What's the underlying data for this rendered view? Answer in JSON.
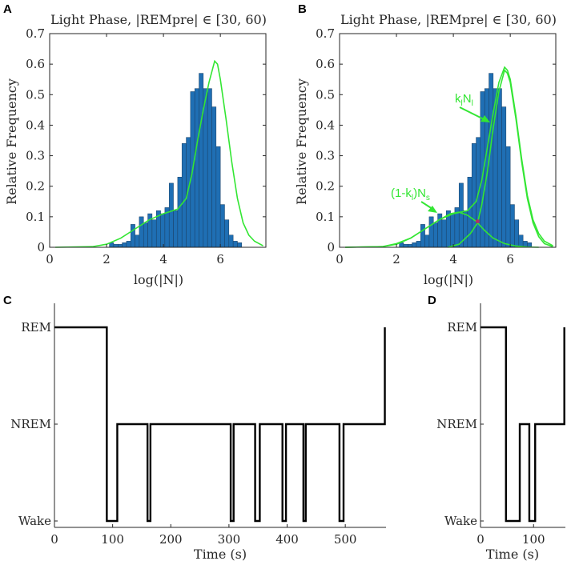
{
  "colors": {
    "bar": "#1f6fb4",
    "bar_edge": "#1a3f63",
    "fit": "#33e633",
    "marker": "#b0306a",
    "axis": "#262626",
    "trace": "#000000"
  },
  "chart_data": [
    {
      "panel": "A",
      "type": "bar",
      "title": "Light Phase, |REMpre| ∈ [30, 60)",
      "xlabel": "log(|N|)",
      "ylabel": "Relative Frequency",
      "xlim": [
        0,
        7.6
      ],
      "ylim": [
        0,
        0.7
      ],
      "xticks": [
        0,
        2,
        4,
        6
      ],
      "yticks": [
        0,
        0.1,
        0.2,
        0.3,
        0.4,
        0.5,
        0.6,
        0.7
      ],
      "bin_start": 2.1,
      "bin_width": 0.15,
      "values": [
        0.015,
        0.01,
        0.01,
        0.015,
        0.02,
        0.075,
        0.04,
        0.1,
        0.08,
        0.11,
        0.09,
        0.12,
        0.11,
        0.13,
        0.21,
        0.12,
        0.23,
        0.34,
        0.36,
        0.51,
        0.52,
        0.57,
        0.52,
        0.52,
        0.46,
        0.33,
        0.14,
        0.09,
        0.04,
        0.02,
        0.015
      ],
      "fit_curve": [
        [
          0.2,
          0
        ],
        [
          1.5,
          0.002
        ],
        [
          2.0,
          0.01
        ],
        [
          2.5,
          0.03
        ],
        [
          3.0,
          0.06
        ],
        [
          3.5,
          0.09
        ],
        [
          4.0,
          0.11
        ],
        [
          4.5,
          0.125
        ],
        [
          4.8,
          0.16
        ],
        [
          5.0,
          0.24
        ],
        [
          5.2,
          0.35
        ],
        [
          5.4,
          0.45
        ],
        [
          5.6,
          0.54
        ],
        [
          5.8,
          0.61
        ],
        [
          5.9,
          0.6
        ],
        [
          6.0,
          0.55
        ],
        [
          6.2,
          0.42
        ],
        [
          6.4,
          0.28
        ],
        [
          6.6,
          0.16
        ],
        [
          6.8,
          0.08
        ],
        [
          7.0,
          0.04
        ],
        [
          7.2,
          0.02
        ],
        [
          7.5,
          0.005
        ]
      ]
    },
    {
      "panel": "B",
      "type": "bar",
      "title": "Light Phase, |REMpre| ∈ [30, 60)",
      "xlabel": "log(|N|)",
      "ylabel": "Relative Frequency",
      "xlim": [
        0,
        7.6
      ],
      "ylim": [
        0,
        0.7
      ],
      "xticks": [
        0,
        2,
        4,
        6
      ],
      "yticks": [
        0,
        0.1,
        0.2,
        0.3,
        0.4,
        0.5,
        0.6,
        0.7
      ],
      "bin_start": 2.1,
      "bin_width": 0.15,
      "values": [
        0.015,
        0.01,
        0.01,
        0.015,
        0.02,
        0.075,
        0.04,
        0.1,
        0.08,
        0.11,
        0.09,
        0.12,
        0.11,
        0.13,
        0.21,
        0.12,
        0.23,
        0.34,
        0.36,
        0.51,
        0.52,
        0.57,
        0.52,
        0.52,
        0.46,
        0.33,
        0.14,
        0.09,
        0.04,
        0.02,
        0.015
      ],
      "fit_total": [
        [
          0.2,
          0
        ],
        [
          1.5,
          0.002
        ],
        [
          2.0,
          0.01
        ],
        [
          2.5,
          0.03
        ],
        [
          3.0,
          0.06
        ],
        [
          3.5,
          0.09
        ],
        [
          4.0,
          0.11
        ],
        [
          4.5,
          0.12
        ],
        [
          4.8,
          0.15
        ],
        [
          5.0,
          0.22
        ],
        [
          5.2,
          0.33
        ],
        [
          5.4,
          0.44
        ],
        [
          5.6,
          0.54
        ],
        [
          5.8,
          0.59
        ],
        [
          5.9,
          0.58
        ],
        [
          6.0,
          0.55
        ],
        [
          6.2,
          0.43
        ],
        [
          6.4,
          0.29
        ],
        [
          6.6,
          0.17
        ],
        [
          6.8,
          0.09
        ],
        [
          7.0,
          0.045
        ],
        [
          7.2,
          0.02
        ],
        [
          7.5,
          0.005
        ]
      ],
      "fit_short": [
        [
          0.2,
          0
        ],
        [
          1.5,
          0.002
        ],
        [
          2.0,
          0.012
        ],
        [
          2.5,
          0.03
        ],
        [
          3.0,
          0.06
        ],
        [
          3.5,
          0.09
        ],
        [
          3.9,
          0.11
        ],
        [
          4.2,
          0.115
        ],
        [
          4.5,
          0.105
        ],
        [
          4.8,
          0.085
        ],
        [
          5.1,
          0.055
        ],
        [
          5.4,
          0.03
        ],
        [
          5.8,
          0.012
        ],
        [
          6.2,
          0.004
        ],
        [
          6.6,
          0.001
        ],
        [
          7.0,
          0
        ]
      ],
      "fit_long": [
        [
          3.8,
          0
        ],
        [
          4.2,
          0.01
        ],
        [
          4.6,
          0.045
        ],
        [
          4.85,
          0.08
        ],
        [
          5.0,
          0.14
        ],
        [
          5.2,
          0.25
        ],
        [
          5.4,
          0.39
        ],
        [
          5.6,
          0.51
        ],
        [
          5.8,
          0.58
        ],
        [
          5.9,
          0.57
        ],
        [
          6.0,
          0.54
        ],
        [
          6.2,
          0.42
        ],
        [
          6.4,
          0.28
        ],
        [
          6.6,
          0.16
        ],
        [
          6.8,
          0.08
        ],
        [
          7.0,
          0.035
        ],
        [
          7.2,
          0.012
        ],
        [
          7.5,
          0.002
        ]
      ],
      "intersection": [
        4.85,
        0.085
      ],
      "annotations": {
        "long": "k_l N_l",
        "short": "(1-k_l)N_s",
        "long_parts": [
          "k",
          "l",
          "N",
          "l"
        ],
        "short_parts": [
          "(1-k",
          "l",
          ")N",
          "s"
        ]
      }
    },
    {
      "panel": "C",
      "type": "line",
      "xlabel": "Time (s)",
      "xlim": [
        0,
        570
      ],
      "xticks": [
        0,
        100,
        200,
        300,
        400,
        500
      ],
      "states": [
        "Wake",
        "NREM",
        "REM"
      ],
      "trace": [
        [
          0,
          2
        ],
        [
          90,
          2
        ],
        [
          90,
          0
        ],
        [
          108,
          0
        ],
        [
          108,
          1
        ],
        [
          160,
          1
        ],
        [
          160,
          0
        ],
        [
          165,
          0
        ],
        [
          165,
          1
        ],
        [
          303,
          1
        ],
        [
          303,
          0
        ],
        [
          308,
          0
        ],
        [
          308,
          1
        ],
        [
          345,
          1
        ],
        [
          345,
          0
        ],
        [
          353,
          0
        ],
        [
          353,
          1
        ],
        [
          392,
          1
        ],
        [
          392,
          0
        ],
        [
          398,
          0
        ],
        [
          398,
          1
        ],
        [
          428,
          1
        ],
        [
          428,
          0
        ],
        [
          432,
          0
        ],
        [
          432,
          1
        ],
        [
          490,
          1
        ],
        [
          490,
          0
        ],
        [
          497,
          0
        ],
        [
          497,
          1
        ],
        [
          568,
          1
        ],
        [
          568,
          2
        ]
      ]
    },
    {
      "panel": "D",
      "type": "line",
      "xlabel": "Time (s)",
      "xlim": [
        0,
        160
      ],
      "xticks": [
        0,
        100
      ],
      "states": [
        "Wake",
        "NREM",
        "REM"
      ],
      "trace": [
        [
          0,
          2
        ],
        [
          48,
          2
        ],
        [
          48,
          0
        ],
        [
          74,
          0
        ],
        [
          74,
          1
        ],
        [
          92,
          1
        ],
        [
          92,
          0
        ],
        [
          103,
          0
        ],
        [
          103,
          1
        ],
        [
          158,
          1
        ],
        [
          158,
          2
        ]
      ]
    }
  ]
}
